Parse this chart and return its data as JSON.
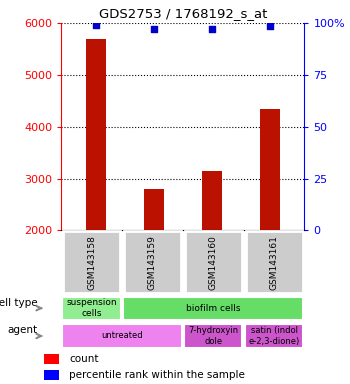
{
  "title": "GDS2753 / 1768192_s_at",
  "samples": [
    "GSM143158",
    "GSM143159",
    "GSM143160",
    "GSM143161"
  ],
  "counts": [
    5700,
    2800,
    3150,
    4350
  ],
  "percentiles": [
    99,
    97,
    97,
    98.5
  ],
  "ylim_left": [
    2000,
    6000
  ],
  "ylim_right": [
    0,
    100
  ],
  "yticks_left": [
    2000,
    3000,
    4000,
    5000,
    6000
  ],
  "yticks_right": [
    0,
    25,
    50,
    75,
    100
  ],
  "bar_color": "#bb1100",
  "scatter_color": "#0000cc",
  "cell_types": [
    {
      "label": "suspension\ncells",
      "span": [
        0,
        1
      ],
      "color": "#90ee90"
    },
    {
      "label": "biofilm cells",
      "span": [
        1,
        4
      ],
      "color": "#66dd66"
    }
  ],
  "agents": [
    {
      "label": "untreated",
      "span": [
        0,
        2
      ],
      "color": "#ee82ee"
    },
    {
      "label": "7-hydroxyin\ndole",
      "span": [
        2,
        3
      ],
      "color": "#cc55cc"
    },
    {
      "label": "satin (indol\ne-2,3-dione)",
      "span": [
        3,
        4
      ],
      "color": "#cc55cc"
    }
  ],
  "legend_count_label": "count",
  "legend_pct_label": "percentile rank within the sample",
  "bg_color": "#cccccc"
}
